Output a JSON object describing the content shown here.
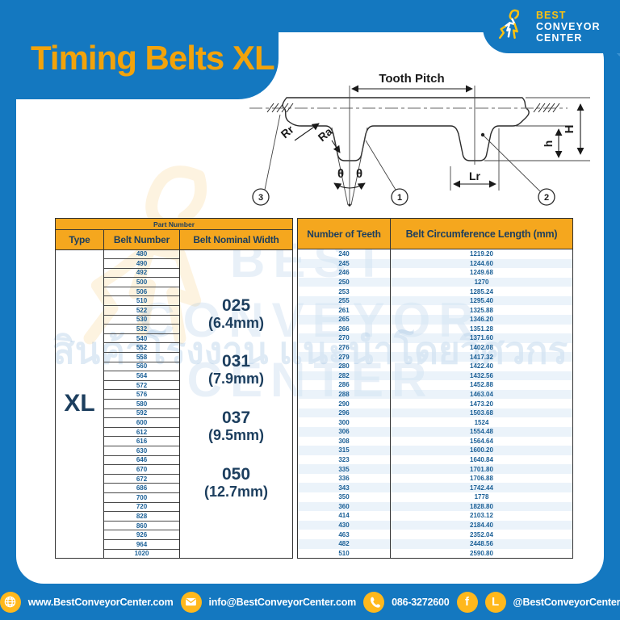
{
  "colors": {
    "blue": "#1478C0",
    "yellow": "#FFB81C",
    "gold_title": "#F2A30B",
    "header_orange": "#F5A71E",
    "navy": "#1C3E5E",
    "table_text_blue": "#1A5F96"
  },
  "header": {
    "title": "Timing Belts XL"
  },
  "logo": {
    "line1": "BEST",
    "line2": "CONVEYOR",
    "line3": "CENTER"
  },
  "diagram": {
    "tooth_pitch": "Tooth Pitch",
    "rr": "Rr",
    "ra": "Ra",
    "theta_left": "θ",
    "theta_right": "θ",
    "lr": "Lr",
    "h_total": "H",
    "h_tooth": "h",
    "callout_1": "1",
    "callout_2": "2",
    "callout_3": "3"
  },
  "table": {
    "part_number_header": "Part Number",
    "col_type": "Type",
    "col_belt_number": "Belt Number",
    "col_nominal_width": "Belt Nominal Width",
    "col_teeth": "Number of Teeth",
    "col_circumference": "Belt Circumference Length (mm)",
    "type_value": "XL",
    "belt_numbers": [
      "480",
      "490",
      "492",
      "500",
      "506",
      "510",
      "522",
      "530",
      "532",
      "540",
      "552",
      "558",
      "560",
      "564",
      "572",
      "576",
      "580",
      "592",
      "600",
      "612",
      "616",
      "630",
      "646",
      "670",
      "672",
      "686",
      "700",
      "720",
      "828",
      "860",
      "926",
      "964",
      "1020"
    ],
    "nominal_widths": [
      {
        "code": "025",
        "size": "(6.4mm)"
      },
      {
        "code": "031",
        "size": "(7.9mm)"
      },
      {
        "code": "037",
        "size": "(9.5mm)"
      },
      {
        "code": "050",
        "size": "(12.7mm)"
      }
    ],
    "teeth": [
      "240",
      "245",
      "246",
      "250",
      "253",
      "255",
      "261",
      "265",
      "266",
      "270",
      "276",
      "279",
      "280",
      "282",
      "286",
      "288",
      "290",
      "296",
      "300",
      "306",
      "308",
      "315",
      "323",
      "335",
      "336",
      "343",
      "350",
      "360",
      "414",
      "430",
      "463",
      "482",
      "510"
    ],
    "circumference": [
      "1219.20",
      "1244.60",
      "1249.68",
      "1270",
      "1285.24",
      "1295.40",
      "1325.88",
      "1346.20",
      "1351.28",
      "1371.60",
      "1402.08",
      "1417.32",
      "1422.40",
      "1432.56",
      "1452.88",
      "1463.04",
      "1473.20",
      "1503.68",
      "1524",
      "1554.48",
      "1564.64",
      "1600.20",
      "1640.84",
      "1701.80",
      "1706.88",
      "1742.44",
      "1778",
      "1828.80",
      "2103.12",
      "2184.40",
      "2352.04",
      "2448.56",
      "2590.80"
    ]
  },
  "watermark": {
    "line1": "BEST",
    "line2": "CONVEYOR",
    "line3": "CENTER",
    "thai": "สินค้าโรงงาน แนะนำโดยวิศวกร"
  },
  "footer": {
    "website": "www.BestConveyorCenter.com",
    "email": "info@BestConveyorCenter.com",
    "phone": "086-3272600",
    "social_handle": "@BestConveyorCenter",
    "facebook_label": "f",
    "line_label": "L"
  }
}
